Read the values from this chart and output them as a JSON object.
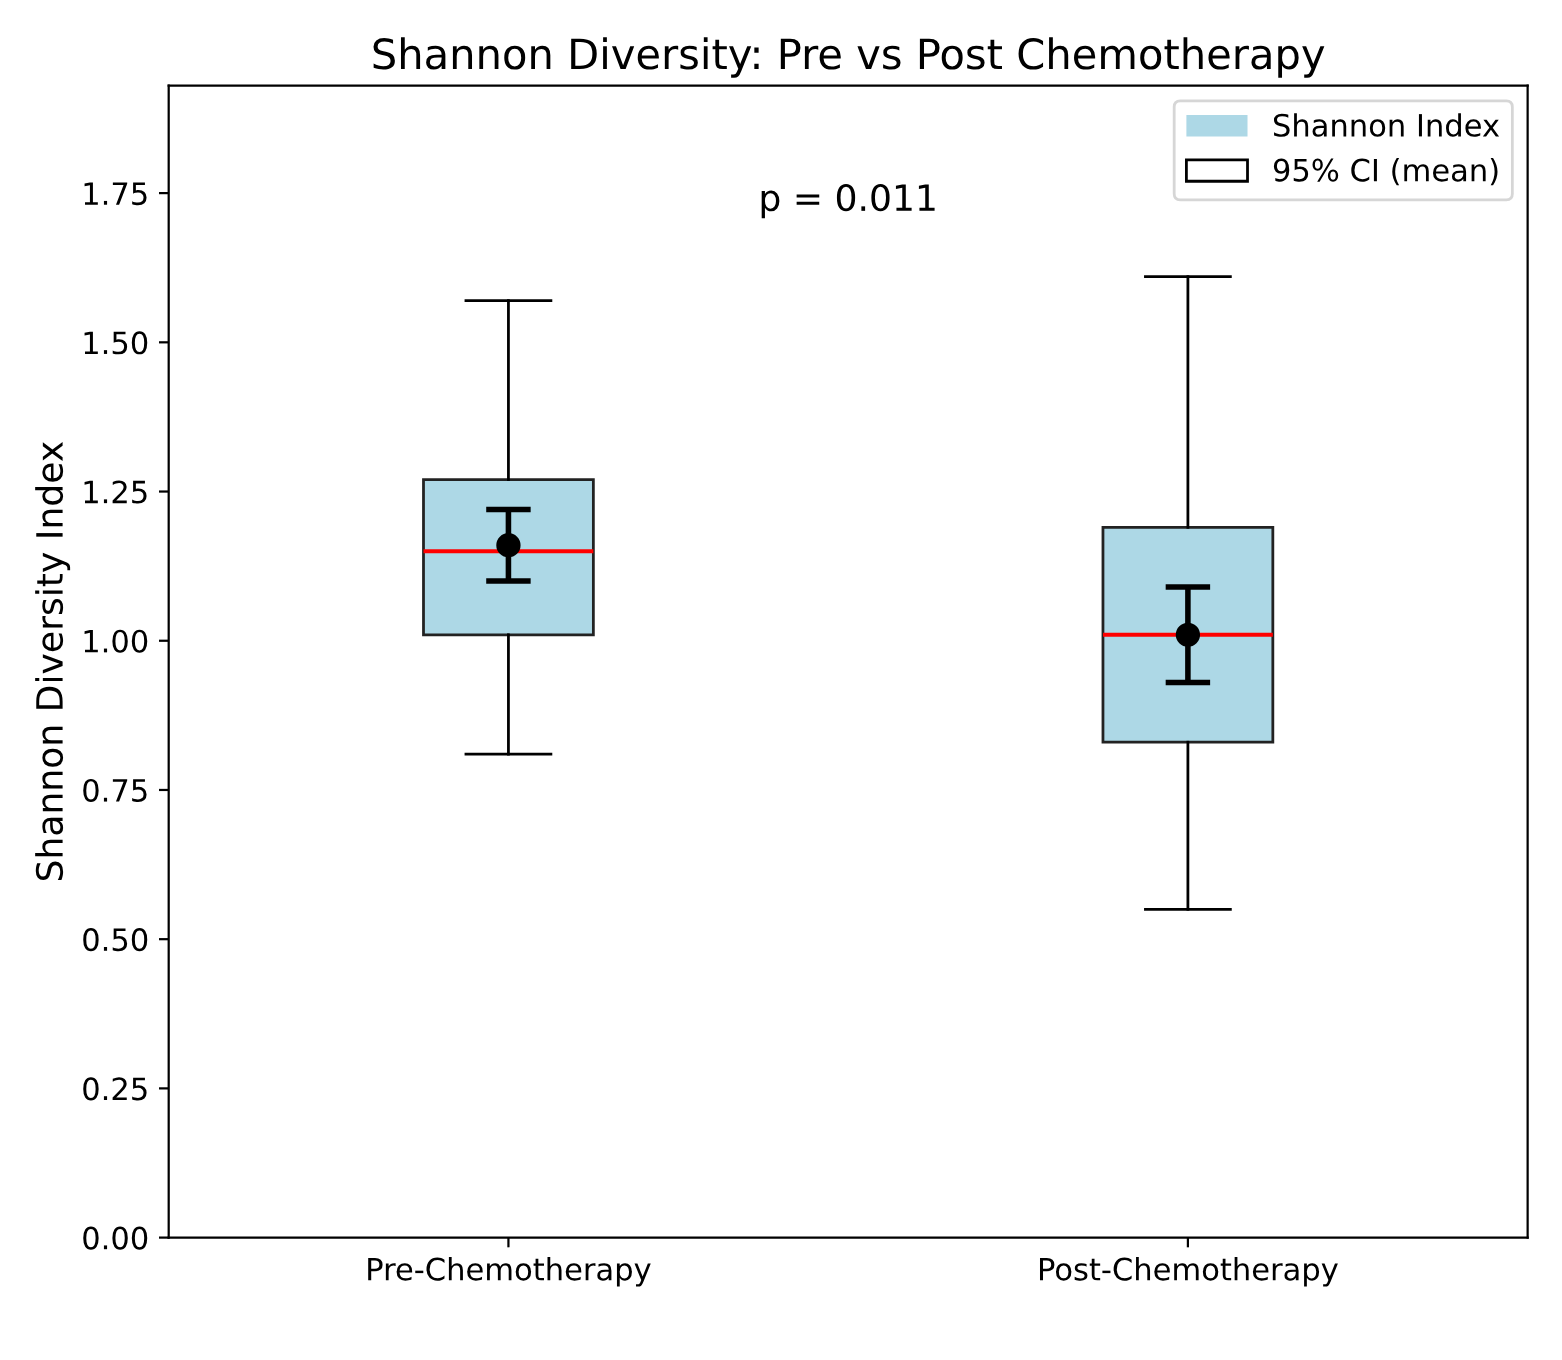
{
  "chart_data": {
    "type": "box",
    "title": "Shannon Diversity: Pre vs Post Chemotherapy",
    "ylabel": "Shannon Diversity Index",
    "categories": [
      "Pre-Chemotherapy",
      "Post-Chemotherapy"
    ],
    "series": [
      {
        "name": "Shannon Index",
        "color": "#add8e6",
        "boxes": [
          {
            "low": 0.81,
            "q1": 1.01,
            "median": 1.15,
            "q3": 1.27,
            "high": 1.57
          },
          {
            "low": 0.55,
            "q1": 0.83,
            "median": 1.01,
            "q3": 1.19,
            "high": 1.61
          }
        ]
      },
      {
        "name": "95% CI (mean)",
        "type": "scatter",
        "color": "#000000",
        "x": [
          "Pre-Chemotherapy",
          "Post-Chemotherapy"
        ],
        "values": [
          1.16,
          1.01
        ],
        "errors": [
          [
            1.1,
            1.22
          ],
          [
            0.93,
            1.09
          ]
        ]
      }
    ],
    "annotations": [
      "p = 0.011"
    ],
    "ylim": [
      0,
      1.93
    ],
    "yticks": [
      {
        "value": 0,
        "label": "0.00"
      },
      {
        "value": 0.25,
        "label": "0.25"
      },
      {
        "value": 0.5,
        "label": "0.50"
      },
      {
        "value": 0.75,
        "label": "0.75"
      },
      {
        "value": 1,
        "label": "1.00"
      },
      {
        "value": 1.25,
        "label": "1.25"
      },
      {
        "value": 1.5,
        "label": "1.50"
      },
      {
        "value": 1.75,
        "label": "1.75"
      }
    ],
    "marker": "circle",
    "legend": "top right",
    "grid": false
  }
}
